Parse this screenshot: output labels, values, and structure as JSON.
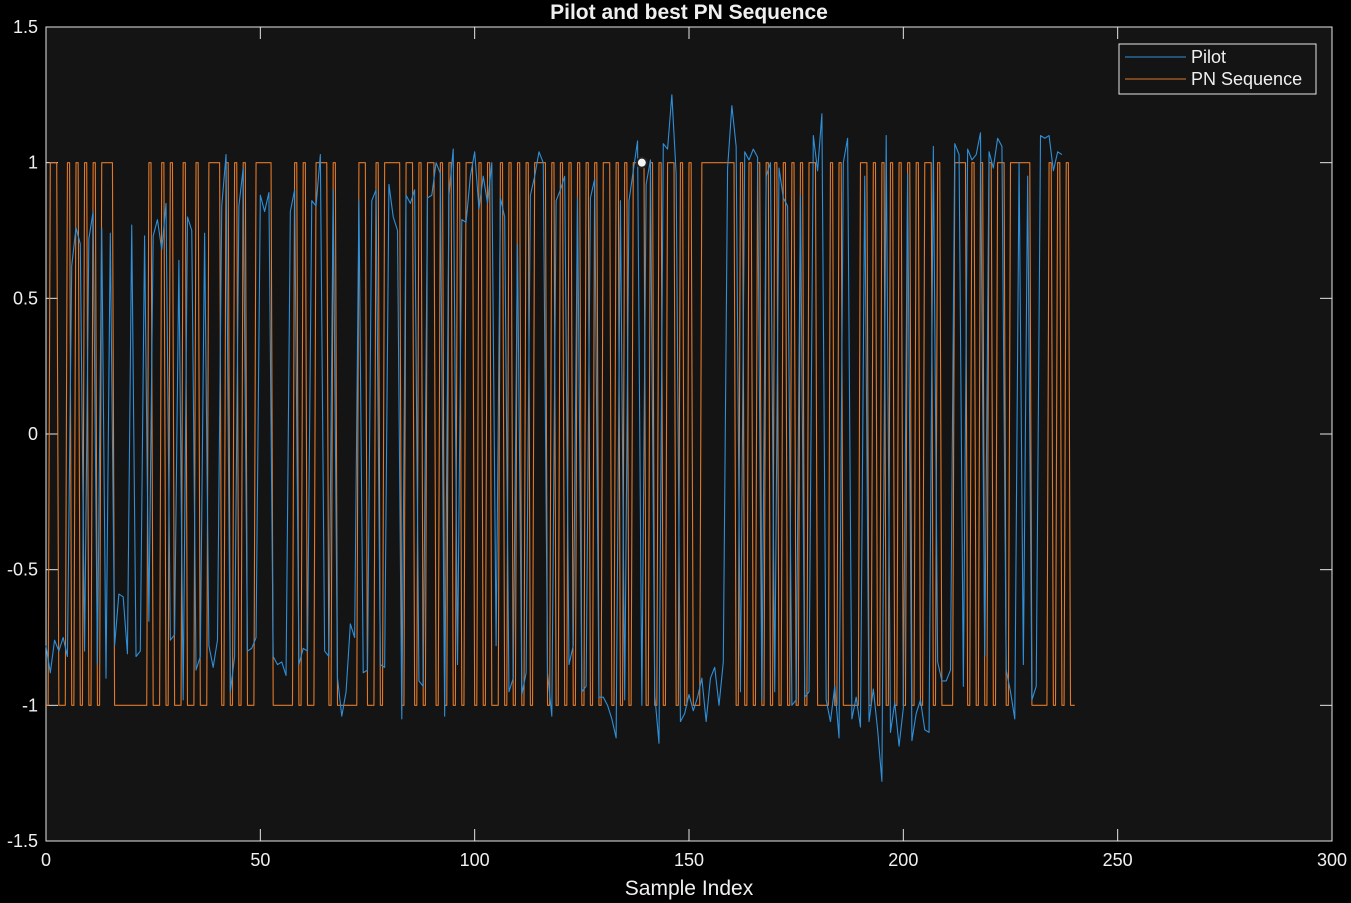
{
  "chart_data": {
    "type": "line",
    "title": "Pilot and best PN Sequence",
    "xlabel": "Sample Index",
    "ylabel": "",
    "xlim": [
      0,
      300
    ],
    "ylim": [
      -1.5,
      1.5
    ],
    "xticks": [
      0,
      50,
      100,
      150,
      200,
      250,
      300
    ],
    "yticks": [
      -1.5,
      -1,
      -0.5,
      0,
      0.5,
      1,
      1.5
    ],
    "xtick_labels": [
      "0",
      "50",
      "100",
      "150",
      "200",
      "250",
      "300"
    ],
    "ytick_labels": [
      "-1.5",
      "-1",
      "-0.5",
      "0",
      "0.5",
      "1",
      "1.5"
    ],
    "grid": false,
    "legend_position": "top-right",
    "background": "#141414",
    "series": [
      {
        "name": "Pilot",
        "color": "#2f8fd8",
        "step": false,
        "values": [
          -0.78,
          -0.88,
          -0.76,
          -0.8,
          -0.75,
          -0.82,
          0.62,
          0.76,
          0.7,
          -0.8,
          0.72,
          0.82,
          -0.85,
          0.76,
          -0.9,
          0.74,
          -0.78,
          -0.59,
          -0.6,
          -0.81,
          0.77,
          -0.82,
          -0.8,
          0.73,
          -0.69,
          0.73,
          0.79,
          0.68,
          0.85,
          -0.76,
          -0.74,
          0.64,
          -0.98,
          0.8,
          0.75,
          -0.87,
          -0.82,
          0.74,
          -0.78,
          -0.86,
          -0.76,
          0.84,
          1.03,
          -0.95,
          -0.82,
          0.84,
          0.98,
          -0.8,
          -0.79,
          -0.75,
          0.88,
          0.82,
          0.89,
          -0.82,
          -0.85,
          -0.84,
          -0.89,
          0.82,
          0.9,
          -0.85,
          -0.79,
          -0.8,
          0.86,
          0.84,
          1.03,
          -0.8,
          -0.82,
          0.9,
          -0.9,
          -1.04,
          -0.95,
          -0.7,
          -0.75,
          0.86,
          -0.88,
          -0.87,
          0.86,
          0.9,
          -0.85,
          -0.86,
          0.92,
          0.8,
          0.75,
          -1.05,
          0.88,
          0.85,
          0.9,
          -0.91,
          -0.93,
          0.87,
          0.88,
          1.0,
          0.96,
          -1.04,
          0.88,
          1.05,
          -0.85,
          0.79,
          0.78,
          0.95,
          1.04,
          0.83,
          0.95,
          0.85,
          1.0,
          -0.78,
          0.87,
          0.8,
          -0.95,
          -0.9,
          0.7,
          -0.96,
          -0.88,
          0.88,
          0.95,
          1.04,
          1.0,
          -0.88,
          -1.04,
          0.86,
          0.9,
          0.95,
          -0.85,
          -0.78,
          0.87,
          -0.95,
          -0.93,
          0.87,
          0.94,
          -0.97,
          -0.97,
          -1.0,
          -1.05,
          -1.12,
          0.86,
          -0.98,
          0.86,
          0.97,
          1.08,
          -1.0,
          0.92,
          1.01,
          -0.96,
          -1.14,
          1.07,
          1.05,
          1.25,
          0.96,
          -1.06,
          -1.03,
          -0.96,
          -1.02,
          -0.97,
          -0.9,
          -1.06,
          -0.9,
          -0.86,
          -1.0,
          -0.84,
          0.98,
          1.21,
          1.06,
          -0.95,
          1.04,
          1.01,
          1.05,
          1.02,
          -0.98,
          0.95,
          1.0,
          -0.95,
          0.98,
          0.87,
          0.84,
          -1.0,
          -0.98,
          0.88,
          -0.97,
          -0.95,
          1.1,
          0.97,
          1.18,
          -0.98,
          -1.06,
          -0.93,
          -1.12,
          1.0,
          1.09,
          -1.05,
          -0.97,
          -1.08,
          0.95,
          -1.06,
          -0.94,
          -1.09,
          -1.28,
          1.1,
          -1.1,
          -0.99,
          -1.15,
          -1.01,
          0.96,
          -1.13,
          -1.03,
          -0.98,
          -1.09,
          -1.1,
          1.06,
          -0.84,
          -0.91,
          -0.91,
          -0.87,
          1.07,
          1.03,
          -0.93,
          1.05,
          1.01,
          1.03,
          1.11,
          -0.82,
          1.04,
          0.98,
          1.09,
          1.06,
          -0.87,
          -0.95,
          -1.05,
          1.0,
          -0.85,
          0.95,
          -0.98,
          -0.93,
          1.1,
          1.09,
          1.1,
          0.97,
          1.04,
          1.03
        ]
      },
      {
        "name": "PN Sequence",
        "color": "#e0792a",
        "step": true,
        "values": [
          -1,
          1,
          1,
          -1,
          -1,
          1,
          -1,
          1,
          -1,
          1,
          -1,
          1,
          -1,
          1,
          1,
          1,
          -1,
          -1,
          -1,
          -1,
          -1,
          -1,
          -1,
          -1,
          1,
          -1,
          -1,
          1,
          -1,
          1,
          -1,
          -1,
          1,
          -1,
          -1,
          1,
          -1,
          -1,
          1,
          1,
          1,
          -1,
          1,
          -1,
          1,
          -1,
          1,
          -1,
          -1,
          1,
          1,
          1,
          1,
          -1,
          -1,
          -1,
          -1,
          -1,
          1,
          -1,
          1,
          -1,
          -1,
          1,
          1,
          1,
          -1,
          1,
          -1,
          -1,
          -1,
          -1,
          -1,
          1,
          1,
          -1,
          -1,
          1,
          -1,
          1,
          1,
          1,
          1,
          -1,
          1,
          1,
          -1,
          1,
          -1,
          1,
          1,
          -1,
          1,
          -1,
          1,
          -1,
          1,
          -1,
          1,
          1,
          -1,
          1,
          -1,
          1,
          -1,
          -1,
          1,
          -1,
          1,
          -1,
          1,
          -1,
          1,
          -1,
          1,
          1,
          1,
          -1,
          1,
          -1,
          1,
          -1,
          1,
          -1,
          1,
          -1,
          1,
          -1,
          1,
          -1,
          1,
          1,
          -1,
          1,
          -1,
          1,
          -1,
          1,
          1,
          1,
          -1,
          1,
          -1,
          1,
          -1,
          1,
          1,
          -1,
          1,
          -1,
          1,
          -1,
          -1,
          1,
          1,
          1,
          1,
          1,
          1,
          1,
          1,
          -1,
          1,
          -1,
          1,
          -1,
          1,
          -1,
          1,
          -1,
          1,
          -1,
          1,
          -1,
          1,
          -1,
          1,
          -1,
          1,
          1,
          -1,
          -1,
          -1,
          1,
          -1,
          1,
          -1,
          -1,
          -1,
          -1,
          1,
          1,
          -1,
          1,
          -1,
          1,
          -1,
          1,
          -1,
          1,
          -1,
          1,
          -1,
          1,
          -1,
          1,
          1,
          -1,
          1,
          -1,
          -1,
          -1,
          1,
          1,
          1,
          -1,
          1,
          -1,
          1,
          -1,
          1,
          -1,
          1,
          1,
          -1,
          1,
          1,
          1,
          1,
          1,
          -1,
          -1,
          -1,
          -1,
          1,
          -1,
          1,
          -1,
          1,
          -1,
          -1
        ]
      }
    ],
    "marker": {
      "x": 139,
      "y": 1,
      "color": "#f5f5f5"
    }
  }
}
